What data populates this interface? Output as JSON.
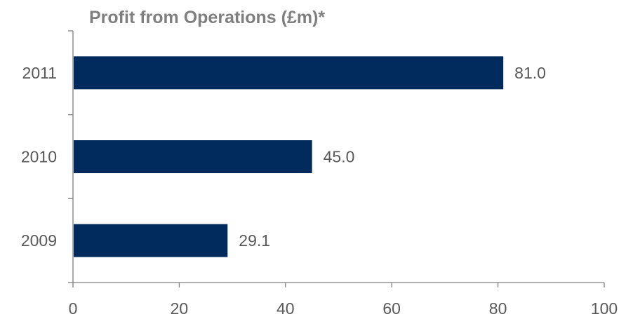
{
  "chart_data": {
    "type": "bar",
    "orientation": "horizontal",
    "title": "Profit from Operations (£m)*",
    "xlabel": "",
    "ylabel": "",
    "categories": [
      "2011",
      "2010",
      "2009"
    ],
    "values": [
      81.0,
      45.0,
      29.1
    ],
    "data_labels": [
      "81.0",
      "45.0",
      "29.1"
    ],
    "xlim": [
      0,
      100
    ],
    "x_ticks": [
      0,
      20,
      40,
      60,
      80,
      100
    ],
    "x_tick_labels": [
      "0",
      "20",
      "40",
      "60",
      "80",
      "100"
    ],
    "grid": false,
    "legend": "none",
    "bar_color": "#002b5c"
  }
}
